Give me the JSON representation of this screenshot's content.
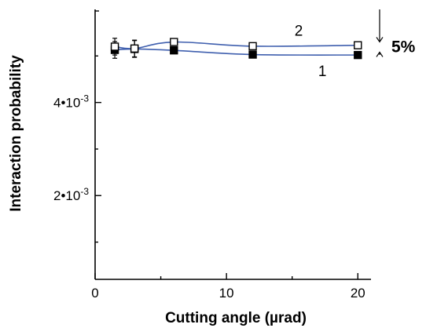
{
  "chart_data": {
    "type": "line",
    "xlabel": "Cutting angle (µrad)",
    "ylabel": "Interaction probability",
    "xlim": [
      0,
      21
    ],
    "ylim": [
      0.0002,
      0.006
    ],
    "x_ticks": [
      0,
      10,
      20
    ],
    "x_tick_labels": [
      "0",
      "10",
      "20"
    ],
    "y_ticks": [
      0.002,
      0.004
    ],
    "y_tick_labels": [
      "2•10",
      "4•10"
    ],
    "y_tick_exponent": "-3",
    "grid": false,
    "line_color": "#3f5fae",
    "series": [
      {
        "name": "1",
        "marker": "filled-square",
        "x": [
          1.5,
          3,
          6,
          12,
          20
        ],
        "values": [
          0.00513,
          0.00515,
          0.00512,
          0.00503,
          0.00502
        ],
        "error": [
          0.00018,
          0.00018,
          4e-05,
          4e-05,
          4e-05
        ]
      },
      {
        "name": "2",
        "marker": "open-square",
        "x": [
          1.5,
          3,
          6,
          12,
          20
        ],
        "values": [
          0.0052,
          0.00516,
          0.0053,
          0.00521,
          0.00523
        ],
        "error": [
          0.00018,
          0.00018,
          4e-05,
          4e-05,
          4e-05
        ]
      }
    ],
    "annotation": {
      "text": "5%"
    }
  }
}
